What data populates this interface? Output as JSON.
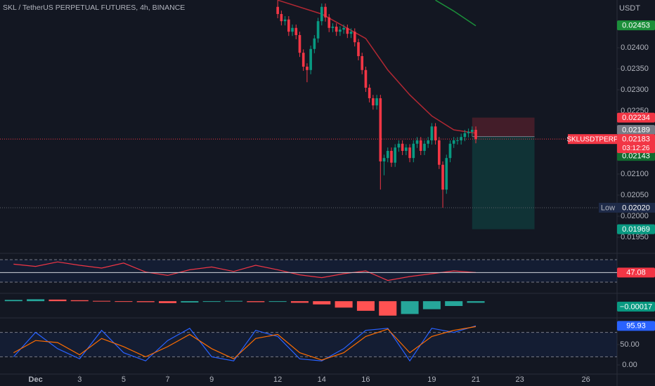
{
  "chart_data": [
    {
      "type": "candlestick",
      "title": "SKL / TetherUS PERPETUAL FUTURES, 4h, BINANCE",
      "currency": "USDT",
      "x": [
        0,
        1,
        2,
        3,
        4,
        5,
        6,
        7,
        8,
        9,
        10,
        11,
        12,
        13,
        14,
        15,
        16,
        17,
        18,
        19,
        20,
        21,
        22,
        23,
        24,
        25,
        26,
        27,
        28,
        29,
        30,
        31,
        32,
        33,
        34,
        35,
        36,
        37,
        38,
        39,
        40,
        41,
        42,
        43,
        44,
        45,
        46,
        47,
        48,
        49,
        50,
        51,
        52,
        53,
        54
      ],
      "open": [
        0.02497,
        0.0248,
        0.02463,
        0.02467,
        0.02438,
        0.02447,
        0.0243,
        0.02388,
        0.02355,
        0.02347,
        0.02397,
        0.02422,
        0.02463,
        0.02497,
        0.02472,
        0.02447,
        0.0245,
        0.02438,
        0.02443,
        0.02447,
        0.02433,
        0.02438,
        0.02413,
        0.0238,
        0.02347,
        0.02305,
        0.0228,
        0.02263,
        0.0228,
        0.0213,
        0.02138,
        0.02155,
        0.02127,
        0.02163,
        0.02172,
        0.02155,
        0.02163,
        0.02138,
        0.02172,
        0.0218,
        0.02155,
        0.02172,
        0.0218,
        0.02213,
        0.0218,
        0.02122,
        0.02063,
        0.02138,
        0.02172,
        0.0218,
        0.0218,
        0.02188,
        0.02197,
        0.022,
        0.02205
      ],
      "high": [
        0.02513,
        0.02488,
        0.02475,
        0.02475,
        0.02455,
        0.02455,
        0.02438,
        0.02396,
        0.02363,
        0.02405,
        0.0243,
        0.02471,
        0.02505,
        0.02505,
        0.0248,
        0.02458,
        0.02458,
        0.02451,
        0.02455,
        0.02455,
        0.02446,
        0.02446,
        0.02421,
        0.02388,
        0.02355,
        0.02313,
        0.02288,
        0.02288,
        0.02288,
        0.02146,
        0.02163,
        0.02163,
        0.02171,
        0.0218,
        0.0218,
        0.02171,
        0.02171,
        0.0218,
        0.02188,
        0.02188,
        0.0218,
        0.02188,
        0.02221,
        0.02221,
        0.02188,
        0.0213,
        0.02146,
        0.0218,
        0.02188,
        0.02188,
        0.02196,
        0.02205,
        0.02208,
        0.02213,
        0.02213
      ],
      "low": [
        0.0247,
        0.02453,
        0.02453,
        0.02428,
        0.02428,
        0.0242,
        0.02378,
        0.02345,
        0.02318,
        0.02337,
        0.02387,
        0.02412,
        0.02453,
        0.02462,
        0.02437,
        0.02437,
        0.02428,
        0.02428,
        0.02433,
        0.02423,
        0.02423,
        0.02403,
        0.0237,
        0.02337,
        0.02295,
        0.0227,
        0.02253,
        0.02253,
        0.02063,
        0.02097,
        0.02128,
        0.02117,
        0.02117,
        0.02153,
        0.02145,
        0.02145,
        0.02128,
        0.02128,
        0.02162,
        0.02145,
        0.02145,
        0.02162,
        0.0217,
        0.0217,
        0.02112,
        0.0202,
        0.02053,
        0.02128,
        0.02162,
        0.0217,
        0.0217,
        0.02178,
        0.02187,
        0.0219,
        0.02173
      ],
      "close": [
        0.0248,
        0.02463,
        0.02467,
        0.02438,
        0.02447,
        0.0243,
        0.02388,
        0.02355,
        0.02347,
        0.02397,
        0.02422,
        0.02463,
        0.02497,
        0.02472,
        0.02447,
        0.0245,
        0.02438,
        0.02443,
        0.02447,
        0.02433,
        0.02438,
        0.02413,
        0.0238,
        0.02347,
        0.02305,
        0.0228,
        0.02263,
        0.0228,
        0.0213,
        0.02138,
        0.02155,
        0.02127,
        0.02163,
        0.02172,
        0.02155,
        0.02163,
        0.02138,
        0.02172,
        0.0218,
        0.02155,
        0.02172,
        0.0218,
        0.02213,
        0.0218,
        0.02122,
        0.02063,
        0.02138,
        0.02172,
        0.0218,
        0.0218,
        0.02188,
        0.02197,
        0.022,
        0.02205,
        0.02183
      ],
      "up_color": "#089981",
      "down_color": "#f23645",
      "series": [
        {
          "color": "#b22833",
          "x": [
            0,
            12,
            24,
            30,
            36,
            42,
            48,
            54
          ],
          "values": [
            0.02513,
            0.0248,
            0.02422,
            0.02347,
            0.02288,
            0.02238,
            0.02205,
            0.02197
          ]
        },
        {
          "color": "#1b8f3a",
          "x": [
            43,
            48,
            54
          ],
          "values": [
            0.02513,
            0.02487,
            0.02452
          ]
        }
      ],
      "xlim": [
        -75.7,
        92.5
      ],
      "ylim": [
        0.019133,
        0.025133
      ],
      "yticks": [
        {
          "value": 0.024,
          "label": "0.02400"
        },
        {
          "value": 0.0235,
          "label": "0.02350"
        },
        {
          "value": 0.023,
          "label": "0.02300"
        },
        {
          "value": 0.0225,
          "label": "0.02250"
        },
        {
          "value": 0.021,
          "label": "0.02100"
        },
        {
          "value": 0.0205,
          "label": "0.02050"
        },
        {
          "value": 0.02,
          "label": "0.02000"
        },
        {
          "value": 0.0195,
          "label": "0.01950"
        }
      ],
      "xticks": [
        {
          "value": -66,
          "label": "Dec"
        },
        {
          "value": -54,
          "label": "3"
        },
        {
          "value": -42,
          "label": "5"
        },
        {
          "value": -30,
          "label": "7"
        },
        {
          "value": -18,
          "label": "9"
        },
        {
          "value": 0,
          "label": "12"
        },
        {
          "value": 12,
          "label": "14"
        },
        {
          "value": 24,
          "label": "16"
        },
        {
          "value": 42,
          "label": "19"
        },
        {
          "value": 54,
          "label": "21"
        },
        {
          "value": 66,
          "label": "23"
        },
        {
          "value": 84,
          "label": "26"
        }
      ],
      "position": {
        "x": [
          53,
          70
        ],
        "entry": 0.02189,
        "stop": 0.02234,
        "target": 0.01969
      },
      "badges": [
        {
          "value": 0.02453,
          "label": "0.02453",
          "color": "#1b8f3a"
        },
        {
          "value": 0.02234,
          "label": "0.02234",
          "color": "#f23645"
        },
        {
          "value": 0.02189,
          "label": "0.02189",
          "color": "#787b86"
        },
        {
          "value": 0.02143,
          "label": "0.02143",
          "color": "#0f6b2f"
        },
        {
          "value": 0.01969,
          "label": "0.01969",
          "color": "#089981"
        }
      ],
      "low_marker": {
        "label": "Low",
        "value": 0.0202,
        "value_label": "0.02020"
      },
      "symbol": {
        "name": "SKLUSDTPERP",
        "price": 0.02183,
        "countdown": "03:12:26"
      }
    },
    {
      "type": "line",
      "x": [
        -72,
        -66,
        -60,
        -54,
        -48,
        -42,
        -36,
        -30,
        -24,
        -18,
        -12,
        -6,
        0,
        6,
        12,
        18,
        24,
        30,
        36,
        42,
        48,
        54
      ],
      "values": [
        62,
        58,
        66,
        60,
        55,
        64,
        48,
        42,
        52,
        57,
        49,
        60,
        52,
        43,
        38,
        45,
        50,
        33,
        40,
        45,
        50,
        47.08
      ],
      "color": "#f23645",
      "ylim": [
        12.5,
        80
      ],
      "levels": [
        70,
        30
      ]
    },
    {
      "type": "bar",
      "x": [
        -72,
        -66,
        -60,
        -54,
        -48,
        -42,
        -36,
        -30,
        -24,
        -18,
        -12,
        -6,
        0,
        6,
        12,
        18,
        24,
        30,
        36,
        42,
        48,
        54
      ],
      "values": [
        4e-05,
        6e-05,
        5e-05,
        3e-05,
        1e-05,
        -2e-05,
        -3e-05,
        -6e-05,
        -4e-05,
        -2e-05,
        1e-05,
        -3e-05,
        -2e-05,
        -5e-05,
        -0.0001,
        -0.0002,
        -0.0003,
        -0.00045,
        -0.0004,
        -0.00025,
        -0.00015,
        -5e-05
      ],
      "up_color": "#26a69a",
      "down_color": "#ff5252",
      "ylim": [
        -0.0005,
        0.0002
      ],
      "macd_value": {
        "value": -0.00017,
        "label": "−0.00017"
      }
    },
    {
      "type": "line",
      "x": [
        -72,
        -66,
        -60,
        -54,
        -48,
        -42,
        -36,
        -30,
        -24,
        -18,
        -12,
        -6,
        0,
        6,
        12,
        18,
        24,
        30,
        36,
        42,
        48,
        54
      ],
      "series": [
        {
          "color": "#2962ff",
          "values": [
            20,
            80,
            40,
            15,
            85,
            30,
            10,
            60,
            90,
            20,
            10,
            85,
            70,
            15,
            10,
            40,
            85,
            90,
            10,
            90,
            80,
            95.93
          ]
        },
        {
          "color": "#ff6d00",
          "values": [
            30,
            60,
            55,
            25,
            65,
            45,
            20,
            45,
            75,
            40,
            15,
            65,
            75,
            30,
            12,
            30,
            70,
            88,
            30,
            70,
            85,
            94
          ]
        }
      ],
      "ylim": [
        -20.7,
        112
      ],
      "yticks": [
        {
          "value": 50,
          "label": "50.00"
        },
        {
          "value": 0,
          "label": "0.00"
        }
      ],
      "levels": [
        80,
        20
      ]
    }
  ]
}
